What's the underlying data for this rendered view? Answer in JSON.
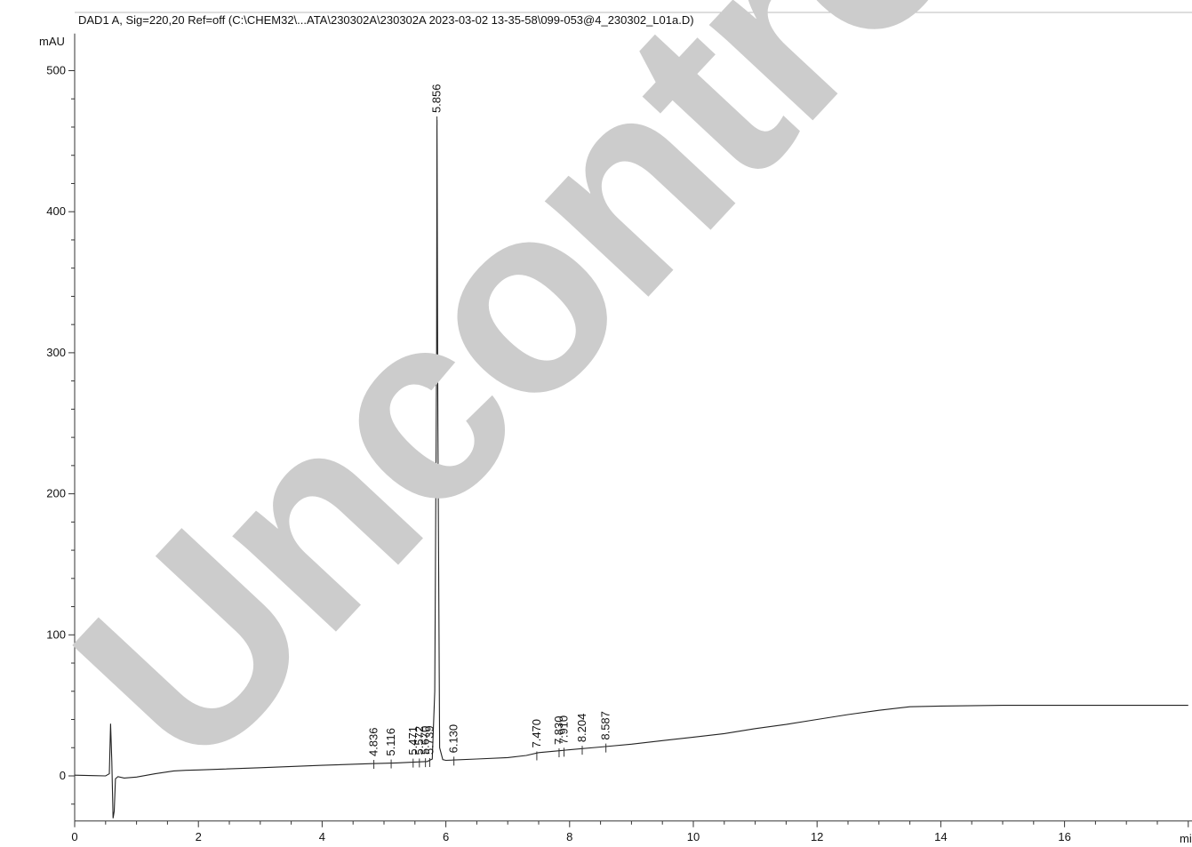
{
  "chart_data": {
    "type": "line",
    "title": "DAD1 A, Sig=220,20 Ref=off (C:\\CHEM32\\...ATA\\230302A\\230302A 2023-03-02 13-35-58\\099-053@4_230302_L01a.D)",
    "ylabel": "mAU",
    "xlabel": "mi",
    "xlim": [
      0,
      18
    ],
    "ylim": [
      -32,
      520
    ],
    "x_ticks": [
      0,
      2,
      4,
      6,
      8,
      10,
      12,
      14,
      16
    ],
    "y_ticks": [
      0,
      100,
      200,
      300,
      400,
      500
    ],
    "grid": false,
    "watermark": "Uncontrolled Copy",
    "series": [
      {
        "x": [
          0.0,
          0.3,
          0.5,
          0.56,
          0.58,
          0.6,
          0.62,
          0.64,
          0.66,
          0.7,
          0.8,
          1.0,
          1.3,
          1.6,
          1.8,
          2.0,
          3.0,
          4.0,
          4.8,
          5.2,
          5.5,
          5.7,
          5.78,
          5.82,
          5.85,
          5.856,
          5.87,
          5.9,
          5.95,
          6.0,
          6.5,
          7.0,
          7.3,
          7.5,
          8.0,
          8.5,
          9.0,
          9.5,
          10.0,
          10.5,
          11.0,
          11.5,
          12.0,
          12.5,
          13.0,
          13.5,
          14.0,
          15.0,
          16.0,
          17.0,
          18.0
        ],
        "y": [
          0.5,
          0.2,
          0.0,
          1.5,
          37,
          10,
          -30,
          -25,
          -2,
          -0.5,
          -1.5,
          -0.8,
          1.5,
          3.5,
          4.0,
          4.2,
          5.8,
          7.5,
          8.7,
          9.2,
          9.8,
          10.2,
          12,
          60,
          300,
          465,
          250,
          20,
          11.5,
          11.0,
          12.0,
          13.0,
          14.5,
          16.5,
          18.5,
          20.5,
          22.5,
          25.0,
          27.5,
          30.0,
          33.5,
          36.5,
          40.0,
          43.5,
          46.5,
          49.0,
          49.5,
          50.0,
          50.0,
          50.0,
          50.0
        ]
      }
    ],
    "peaks": [
      {
        "label": "4.836",
        "x": 4.836,
        "y": 8.8
      },
      {
        "label": "5.116",
        "x": 5.116,
        "y": 9.1
      },
      {
        "label": "5.471",
        "x": 5.471,
        "y": 9.7
      },
      {
        "label": "5.572",
        "x": 5.572,
        "y": 9.8
      },
      {
        "label": "5.670",
        "x": 5.67,
        "y": 10.0
      },
      {
        "label": "5.739",
        "x": 5.739,
        "y": 10.1
      },
      {
        "label": "5.856",
        "x": 5.856,
        "y": 465
      },
      {
        "label": "6.130",
        "x": 6.13,
        "y": 11.1
      },
      {
        "label": "7.470",
        "x": 7.47,
        "y": 14.8
      },
      {
        "label": "7.830",
        "x": 7.83,
        "y": 17.0
      },
      {
        "label": "7.910",
        "x": 7.91,
        "y": 17.4
      },
      {
        "label": "8.204",
        "x": 8.204,
        "y": 18.8
      },
      {
        "label": "8.587",
        "x": 8.587,
        "y": 20.4
      }
    ]
  }
}
